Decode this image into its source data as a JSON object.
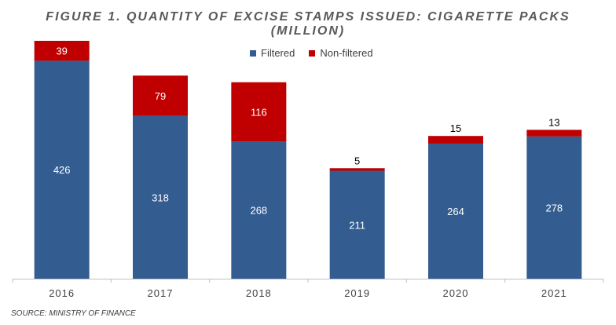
{
  "chart_data": {
    "type": "bar",
    "stacked": true,
    "title_line1": "FIGURE 1. QUANTITY OF EXCISE STAMPS ISSUED: CIGARETTE PACKS",
    "title_line2": "(MILLION)",
    "categories": [
      "2016",
      "2017",
      "2018",
      "2019",
      "2020",
      "2021"
    ],
    "series": [
      {
        "name": "Filtered",
        "color": "#335C91",
        "values": [
          426,
          318,
          268,
          211,
          264,
          278
        ]
      },
      {
        "name": "Non-filtered",
        "color": "#C00000",
        "values": [
          39,
          79,
          116,
          5,
          15,
          13
        ]
      }
    ],
    "ylim": [
      0,
      465
    ],
    "grid": false,
    "legend": "top-center"
  },
  "source": "SOURCE: MINISTRY OF FINANCE"
}
